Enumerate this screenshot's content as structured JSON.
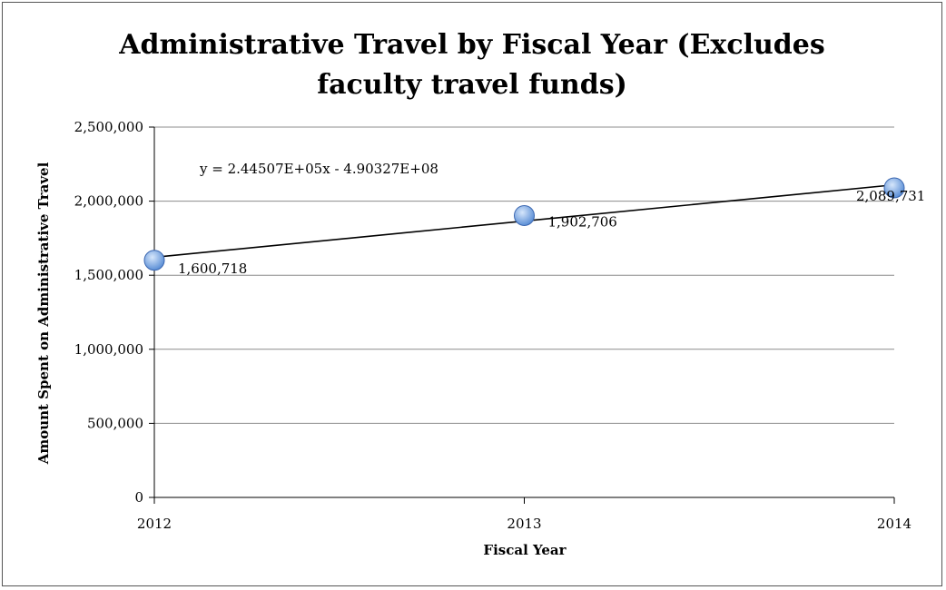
{
  "chart_data": {
    "type": "scatter",
    "title": "Administrative Travel by Fiscal Year (Excludes faculty travel funds)",
    "xlabel": "Fiscal Year",
    "ylabel": "Amount Spent on Administrative Travel",
    "x": [
      2012,
      2013,
      2014
    ],
    "y": [
      1600718,
      1902706,
      2089731
    ],
    "data_labels": [
      "1,600,718",
      "1,902,706",
      "2,089,731"
    ],
    "xlim": [
      2012,
      2014
    ],
    "ylim": [
      0,
      2500000
    ],
    "x_ticks": [
      "2012",
      "2013",
      "2014"
    ],
    "y_ticks": [
      "0",
      "500,000",
      "1,000,000",
      "1,500,000",
      "2,000,000",
      "2,500,000"
    ],
    "y_tick_values": [
      0,
      500000,
      1000000,
      1500000,
      2000000,
      2500000
    ],
    "trendline": {
      "type": "linear",
      "slope": 244507,
      "intercept": -490327000,
      "equation": "y = 2.44507E+05x - 4.90327E+08"
    },
    "grid": "horizontal",
    "legend": "none",
    "colors": {
      "marker": "#5b8fd6",
      "marker_edge": "#3a66b0",
      "grid": "#8c8c8c",
      "trendline": "#000000"
    }
  }
}
